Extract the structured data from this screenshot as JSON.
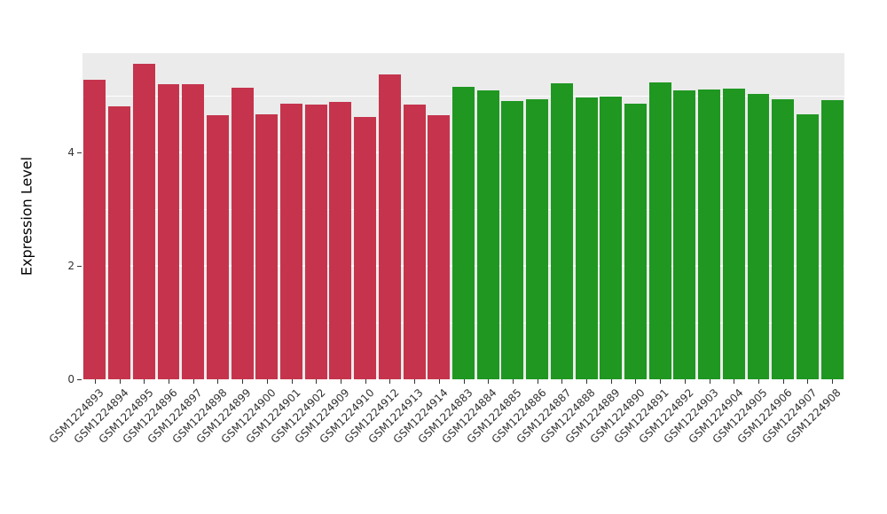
{
  "chart_data": {
    "type": "bar",
    "title": "",
    "xlabel": "",
    "ylabel": "Expression Level",
    "ylim": [
      0,
      5.75
    ],
    "yticks_major": [
      0,
      2,
      4
    ],
    "yticks_minor": [
      1,
      3,
      5
    ],
    "grid": "on",
    "legend": "none",
    "panel_bg": "#EBEBEB",
    "grid_color": "#FFFFFF",
    "groups": {
      "group1": "#C5344C",
      "group2": "#1F9721"
    },
    "points": [
      {
        "label": "GSM1224893",
        "value": 5.28,
        "group": "group1"
      },
      {
        "label": "GSM1224894",
        "value": 4.81,
        "group": "group1"
      },
      {
        "label": "GSM1224895",
        "value": 5.56,
        "group": "group1"
      },
      {
        "label": "GSM1224896",
        "value": 5.2,
        "group": "group1"
      },
      {
        "label": "GSM1224897",
        "value": 5.21,
        "group": "group1"
      },
      {
        "label": "GSM1224898",
        "value": 4.66,
        "group": "group1"
      },
      {
        "label": "GSM1224899",
        "value": 5.14,
        "group": "group1"
      },
      {
        "label": "GSM1224900",
        "value": 4.67,
        "group": "group1"
      },
      {
        "label": "GSM1224901",
        "value": 4.86,
        "group": "group1"
      },
      {
        "label": "GSM1224902",
        "value": 4.85,
        "group": "group1"
      },
      {
        "label": "GSM1224909",
        "value": 4.89,
        "group": "group1"
      },
      {
        "label": "GSM1224910",
        "value": 4.63,
        "group": "group1"
      },
      {
        "label": "GSM1224912",
        "value": 5.38,
        "group": "group1"
      },
      {
        "label": "GSM1224913",
        "value": 4.85,
        "group": "group1"
      },
      {
        "label": "GSM1224914",
        "value": 4.66,
        "group": "group1"
      },
      {
        "label": "GSM1224883",
        "value": 5.16,
        "group": "group2"
      },
      {
        "label": "GSM1224884",
        "value": 5.09,
        "group": "group2"
      },
      {
        "label": "GSM1224885",
        "value": 4.91,
        "group": "group2"
      },
      {
        "label": "GSM1224886",
        "value": 4.94,
        "group": "group2"
      },
      {
        "label": "GSM1224887",
        "value": 5.22,
        "group": "group2"
      },
      {
        "label": "GSM1224888",
        "value": 4.97,
        "group": "group2"
      },
      {
        "label": "GSM1224889",
        "value": 4.98,
        "group": "group2"
      },
      {
        "label": "GSM1224890",
        "value": 4.86,
        "group": "group2"
      },
      {
        "label": "GSM1224891",
        "value": 5.23,
        "group": "group2"
      },
      {
        "label": "GSM1224892",
        "value": 5.09,
        "group": "group2"
      },
      {
        "label": "GSM1224903",
        "value": 5.11,
        "group": "group2"
      },
      {
        "label": "GSM1224904",
        "value": 5.13,
        "group": "group2"
      },
      {
        "label": "GSM1224905",
        "value": 5.03,
        "group": "group2"
      },
      {
        "label": "GSM1224906",
        "value": 4.94,
        "group": "group2"
      },
      {
        "label": "GSM1224907",
        "value": 4.67,
        "group": "group2"
      },
      {
        "label": "GSM1224908",
        "value": 4.92,
        "group": "group2"
      }
    ]
  }
}
